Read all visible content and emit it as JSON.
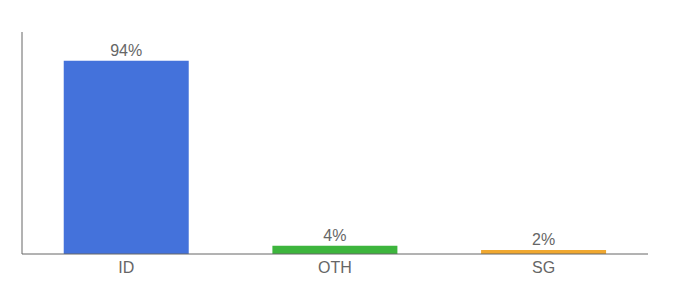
{
  "chart_data": {
    "type": "bar",
    "categories": [
      "ID",
      "OTH",
      "SG"
    ],
    "values": [
      94,
      4,
      2
    ],
    "value_labels": [
      "94%",
      "4%",
      "2%"
    ],
    "colors": [
      "#4472db",
      "#3db53d",
      "#f0a830"
    ],
    "ylim": [
      0,
      108
    ],
    "data_labels": true,
    "tick_labels": "x"
  }
}
